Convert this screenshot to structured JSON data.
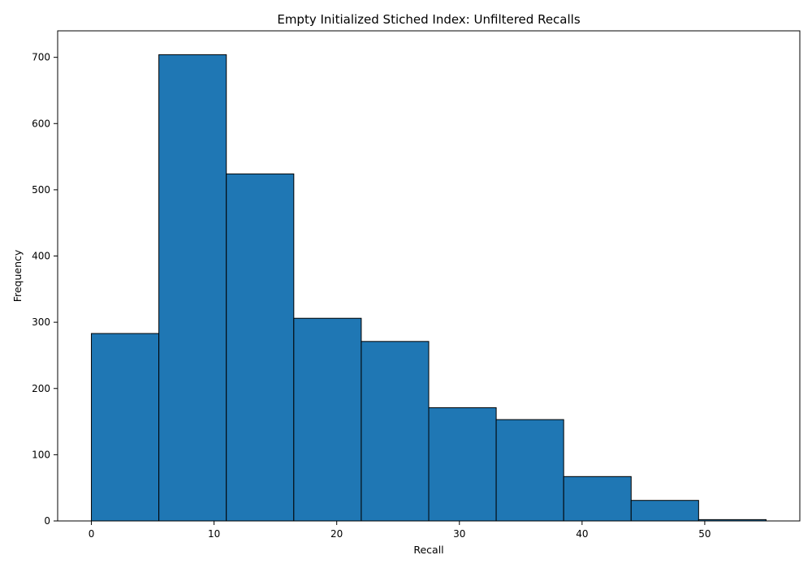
{
  "chart_data": {
    "type": "bar",
    "title": "Empty Initialized Stiched Index: Unfiltered Recalls",
    "xlabel": "Recall",
    "ylabel": "Frequency",
    "bins": [
      {
        "start": 0,
        "end": 5.5,
        "value": 283
      },
      {
        "start": 5.5,
        "end": 11,
        "value": 704
      },
      {
        "start": 11,
        "end": 16.5,
        "value": 524
      },
      {
        "start": 16.5,
        "end": 22,
        "value": 306
      },
      {
        "start": 22,
        "end": 27.5,
        "value": 271
      },
      {
        "start": 27.5,
        "end": 33,
        "value": 171
      },
      {
        "start": 33,
        "end": 38.5,
        "value": 153
      },
      {
        "start": 38.5,
        "end": 44,
        "value": 67
      },
      {
        "start": 44,
        "end": 49.5,
        "value": 31
      },
      {
        "start": 49.5,
        "end": 55,
        "value": 2
      }
    ],
    "xlim": [
      -2.75,
      57.75
    ],
    "ylim": [
      0,
      740
    ],
    "xticks": [
      0,
      10,
      20,
      30,
      40,
      50
    ],
    "yticks": [
      0,
      100,
      200,
      300,
      400,
      500,
      600,
      700
    ],
    "grid": false,
    "legend": "none",
    "colors": {
      "bar_fill": "#1f77b4",
      "bar_edge": "#000000"
    }
  }
}
